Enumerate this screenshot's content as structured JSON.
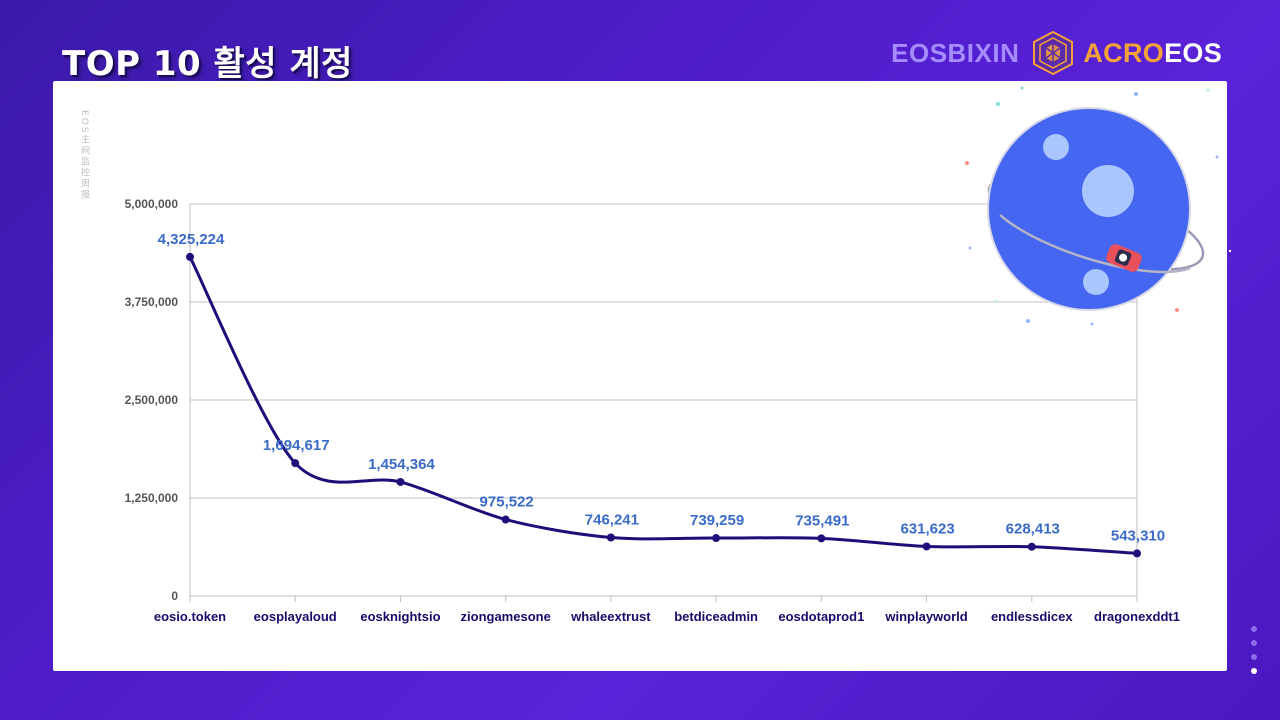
{
  "header": {
    "title": "TOP 10 활성 계정"
  },
  "brand": {
    "left_text": "EOSBIXIN",
    "right_text_a": "ACRO",
    "right_text_b": "EOS",
    "logo_icon": "acroeos-cube-logo-icon"
  },
  "side_tag": "EOS主网监控周报",
  "colors": {
    "line": "#1f0d7a",
    "label": "#3a6bc8",
    "grid": "#bfbfbf",
    "planet": "#4466f0",
    "planet_spot": "#a9c6ff"
  },
  "chart_data": {
    "type": "line",
    "categories": [
      "eosio.token",
      "eosplayaloud",
      "eosknightsio",
      "ziongamesone",
      "whaleextrust",
      "betdiceadmin",
      "eosdotaprod1",
      "winplayworld",
      "endlessdicex",
      "dragonexddt1"
    ],
    "values": [
      4325224,
      1694617,
      1454364,
      975522,
      746241,
      739259,
      735491,
      631623,
      628413,
      543310
    ],
    "data_labels": [
      "4,325,224",
      "1,694,617",
      "1,454,364",
      "975,522",
      "746,241",
      "739,259",
      "735,491",
      "631,623",
      "628,413",
      "543,310"
    ],
    "yticks": [
      0,
      1250000,
      2500000,
      3750000,
      5000000
    ],
    "ytick_labels": [
      "0",
      "1,250,000",
      "2,500,000",
      "3,750,000",
      "5,000,000"
    ],
    "ylim": [
      0,
      5000000
    ],
    "grid": true,
    "legend": "none"
  }
}
